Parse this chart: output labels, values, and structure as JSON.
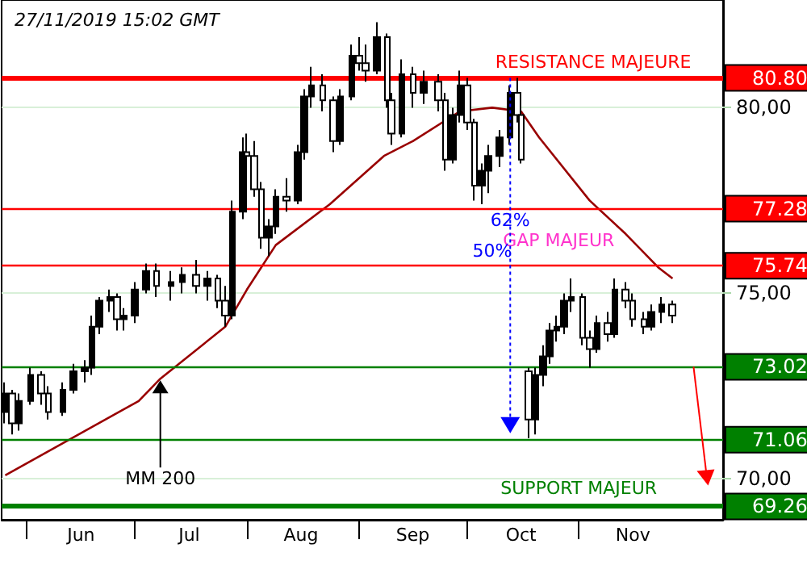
{
  "chart_data": {
    "type": "candlestick",
    "title": "27/11/2019 15:02 GMT",
    "x": [
      "2019-05-26",
      "2019-05-28",
      "2019-05-30",
      "2019-06-02",
      "2019-06-05",
      "2019-06-07",
      "2019-06-11",
      "2019-06-14",
      "2019-06-17",
      "2019-06-19",
      "2019-06-21",
      "2019-06-24",
      "2019-06-26",
      "2019-06-28",
      "2019-07-01",
      "2019-07-04",
      "2019-07-07",
      "2019-07-11",
      "2019-07-14",
      "2019-07-18",
      "2019-07-21",
      "2019-07-24",
      "2019-07-26",
      "2019-07-28",
      "2019-07-31",
      "2019-08-01",
      "2019-08-03",
      "2019-08-05",
      "2019-08-07",
      "2019-08-09",
      "2019-08-12",
      "2019-08-15",
      "2019-08-17",
      "2019-08-19",
      "2019-08-22",
      "2019-08-25",
      "2019-08-27",
      "2019-08-30",
      "2019-09-01",
      "2019-09-03",
      "2019-09-06",
      "2019-09-09",
      "2019-09-10",
      "2019-09-13",
      "2019-09-16",
      "2019-09-19",
      "2019-09-23",
      "2019-09-25",
      "2019-09-27",
      "2019-09-29",
      "2019-10-01",
      "2019-10-03",
      "2019-10-05",
      "2019-10-07",
      "2019-10-10",
      "2019-10-13",
      "2019-10-15",
      "2019-10-16",
      "2019-10-18",
      "2019-10-20",
      "2019-10-22",
      "2019-10-24",
      "2019-10-26",
      "2019-10-28",
      "2019-10-30",
      "2019-11-02",
      "2019-11-04",
      "2019-11-06",
      "2019-11-09",
      "2019-11-11",
      "2019-11-14",
      "2019-11-16",
      "2019-11-19",
      "2019-11-21",
      "2019-11-24",
      "2019-11-27"
    ],
    "series": [
      {
        "type": "candlestick",
        "color": "#000000",
        "ohlc": [
          [
            71.8,
            72.6,
            71.5,
            72.3
          ],
          [
            72.3,
            72.4,
            71.2,
            71.5
          ],
          [
            71.5,
            72.3,
            71.3,
            72.1
          ],
          [
            72.1,
            73.0,
            72.0,
            72.8
          ],
          [
            72.8,
            72.9,
            72.0,
            72.3
          ],
          [
            72.3,
            72.5,
            71.6,
            71.8
          ],
          [
            71.8,
            72.6,
            71.7,
            72.4
          ],
          [
            72.4,
            73.1,
            72.3,
            72.9
          ],
          [
            72.9,
            73.2,
            72.6,
            73.0
          ],
          [
            73.0,
            74.4,
            72.8,
            74.1
          ],
          [
            74.1,
            74.9,
            73.9,
            74.8
          ],
          [
            74.8,
            75.1,
            74.5,
            74.9
          ],
          [
            74.9,
            75.0,
            74.0,
            74.3
          ],
          [
            74.3,
            74.6,
            74.0,
            74.4
          ],
          [
            74.4,
            75.3,
            74.2,
            75.1
          ],
          [
            75.1,
            75.8,
            75.0,
            75.6
          ],
          [
            75.6,
            75.8,
            74.9,
            75.2
          ],
          [
            75.2,
            75.6,
            74.8,
            75.3
          ],
          [
            75.3,
            75.7,
            75.0,
            75.5
          ],
          [
            75.5,
            75.9,
            75.0,
            75.2
          ],
          [
            75.2,
            75.6,
            74.8,
            75.4
          ],
          [
            75.4,
            75.5,
            74.6,
            74.8
          ],
          [
            74.8,
            75.2,
            74.1,
            74.4
          ],
          [
            74.4,
            77.5,
            74.3,
            77.2
          ],
          [
            77.2,
            79.2,
            77.0,
            78.8
          ],
          [
            78.8,
            79.3,
            78.4,
            78.7
          ],
          [
            78.7,
            79.1,
            77.6,
            77.8
          ],
          [
            77.8,
            78.0,
            76.2,
            76.5
          ],
          [
            76.5,
            77.0,
            76.0,
            76.8
          ],
          [
            76.8,
            77.8,
            76.6,
            77.6
          ],
          [
            77.6,
            78.1,
            77.2,
            77.5
          ],
          [
            77.5,
            79.0,
            77.4,
            78.8
          ],
          [
            78.8,
            80.5,
            78.6,
            80.3
          ],
          [
            80.3,
            81.1,
            80.0,
            80.6
          ],
          [
            80.6,
            80.9,
            79.9,
            80.2
          ],
          [
            80.2,
            80.3,
            78.8,
            79.1
          ],
          [
            79.1,
            80.5,
            79.0,
            80.3
          ],
          [
            80.3,
            81.7,
            80.2,
            81.4
          ],
          [
            81.4,
            81.9,
            81.0,
            81.2
          ],
          [
            81.2,
            81.7,
            80.7,
            81.0
          ],
          [
            81.0,
            82.3,
            80.9,
            81.9
          ],
          [
            81.9,
            82.0,
            80.0,
            80.2
          ],
          [
            80.2,
            80.4,
            79.0,
            79.3
          ],
          [
            79.3,
            81.3,
            79.2,
            80.9
          ],
          [
            80.9,
            81.1,
            80.0,
            80.4
          ],
          [
            80.4,
            81.0,
            80.1,
            80.7
          ],
          [
            80.7,
            80.9,
            79.9,
            80.2
          ],
          [
            80.2,
            80.4,
            78.3,
            78.6
          ],
          [
            78.6,
            80.0,
            78.5,
            79.8
          ],
          [
            79.8,
            81.0,
            79.6,
            80.6
          ],
          [
            80.6,
            80.8,
            79.4,
            79.6
          ],
          [
            79.6,
            79.7,
            77.5,
            77.9
          ],
          [
            77.9,
            78.5,
            77.4,
            78.3
          ],
          [
            78.3,
            79.0,
            77.7,
            78.7
          ],
          [
            78.7,
            79.4,
            78.4,
            79.2
          ],
          [
            79.2,
            80.6,
            79.0,
            80.4
          ],
          [
            80.4,
            80.8,
            79.6,
            79.8
          ],
          [
            79.8,
            79.9,
            78.5,
            78.6
          ],
          [
            72.9,
            73.0,
            71.1,
            71.6
          ],
          [
            71.6,
            73.0,
            71.2,
            72.8
          ],
          [
            72.8,
            73.6,
            72.5,
            73.3
          ],
          [
            73.3,
            74.2,
            73.1,
            74.0
          ],
          [
            74.0,
            74.4,
            73.7,
            74.1
          ],
          [
            74.1,
            75.0,
            73.9,
            74.8
          ],
          [
            74.8,
            75.4,
            74.5,
            74.9
          ],
          [
            74.9,
            75.0,
            73.6,
            73.8
          ],
          [
            73.8,
            74.0,
            73.0,
            73.5
          ],
          [
            73.5,
            74.4,
            73.4,
            74.2
          ],
          [
            74.2,
            74.5,
            73.7,
            73.9
          ],
          [
            73.9,
            75.4,
            73.8,
            75.1
          ],
          [
            75.1,
            75.3,
            74.6,
            74.8
          ],
          [
            74.8,
            75.0,
            74.1,
            74.3
          ],
          [
            74.3,
            74.5,
            73.9,
            74.1
          ],
          [
            74.1,
            74.7,
            74.0,
            74.5
          ],
          [
            74.5,
            74.9,
            74.2,
            74.7
          ],
          [
            74.7,
            74.8,
            74.2,
            74.4
          ]
        ]
      },
      {
        "type": "line",
        "color": "#990000",
        "x": [
          "2019-05-26",
          "2019-07-02",
          "2019-07-08",
          "2019-07-26",
          "2019-08-01",
          "2019-08-09",
          "2019-08-24",
          "2019-09-08",
          "2019-09-16",
          "2019-09-29",
          "2019-10-08",
          "2019-10-16",
          "2019-10-21",
          "2019-11-04",
          "2019-11-14",
          "2019-11-23",
          "2019-11-27"
        ],
        "values": [
          70.1,
          72.1,
          72.7,
          74.1,
          75.1,
          76.3,
          77.4,
          78.7,
          79.1,
          79.9,
          80.0,
          79.9,
          79.2,
          77.5,
          76.6,
          75.7,
          75.4
        ]
      }
    ],
    "xlim": [
      "2019-05-25",
      "2019-12-11"
    ],
    "xticks": [
      {
        "value": "2019-06-01",
        "label": null
      },
      {
        "value": "2019-06-16",
        "label": "Jun"
      },
      {
        "value": "2019-07-01",
        "label": null
      },
      {
        "value": "2019-07-16",
        "label": "Jul"
      },
      {
        "value": "2019-08-01",
        "label": null
      },
      {
        "value": "2019-08-16",
        "label": "Aug"
      },
      {
        "value": "2019-09-01",
        "label": null
      },
      {
        "value": "2019-09-16",
        "label": "Sep"
      },
      {
        "value": "2019-10-01",
        "label": null
      },
      {
        "value": "2019-10-16",
        "label": "Oct"
      },
      {
        "value": "2019-11-01",
        "label": null
      },
      {
        "value": "2019-11-16",
        "label": "Nov"
      }
    ],
    "ylim": [
      68.9,
      82.9
    ],
    "yticks": [
      {
        "value": 70,
        "label": "70,00"
      },
      {
        "value": 75,
        "label": "75,00"
      },
      {
        "value": 80,
        "label": "80,00"
      }
    ],
    "grid": "y",
    "marker": "none",
    "ref_lines": [
      {
        "axis": "y",
        "value": 80.8,
        "label": "80.80",
        "color": "#ff0000"
      },
      {
        "axis": "y",
        "value": 77.28,
        "label": "77.28",
        "color": "#ff0000"
      },
      {
        "axis": "y",
        "value": 75.74,
        "label": "75.74",
        "color": "#ff0000"
      },
      {
        "axis": "y",
        "value": 73.02,
        "label": "73.02",
        "color": "#008000"
      },
      {
        "axis": "y",
        "value": 71.06,
        "label": "71.06",
        "color": "#008000"
      },
      {
        "axis": "y",
        "value": 69.26,
        "label": "69.26",
        "color": "#008000"
      }
    ],
    "annotations": [
      {
        "text": "MM 200",
        "x": "2019-07-08",
        "y": 72.7
      },
      {
        "text": "62%",
        "x": "2019-10-13",
        "y": 77.28
      },
      {
        "text": "50%",
        "x": "2019-10-08",
        "y": 75.74
      },
      "GAP MAJEUR",
      {
        "text": "RESISTANCE MAJEURE",
        "x": "2019-11-05",
        "y": 80.8
      },
      {
        "text": "SUPPORT MAJEUR",
        "x": "2019-11-01",
        "y": 69.26
      }
    ]
  }
}
